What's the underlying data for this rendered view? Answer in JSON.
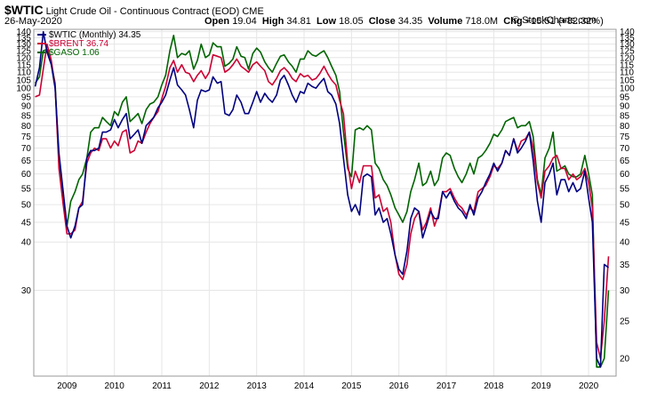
{
  "header": {
    "symbol": "$WTIC",
    "description": "Light Crude Oil - Continuous Contract (EOD)",
    "exchange": "CME",
    "date": "26-May-2020",
    "open_label": "Open",
    "open_value": "19.04",
    "high_label": "High",
    "high_value": "34.81",
    "low_label": "Low",
    "low_value": "18.05",
    "close_label": "Close",
    "close_value": "34.35",
    "volume_label": "Volume",
    "volume_value": "718.0M",
    "chg_label": "Chg",
    "chg_value": "+15.51 (+82.32%)",
    "copyright": "© StockCharts.com"
  },
  "colors": {
    "wtic": "#000080",
    "brent": "#cc0033",
    "gaso": "#006400",
    "grid": "#e6e6e6",
    "frame": "#999999"
  },
  "chart_data": {
    "type": "line",
    "title": "$WTIC Light Crude Oil - Continuous Contract (EOD) CME",
    "y_scale": "log",
    "ylim": [
      18,
      142
    ],
    "xlim": [
      2008.3,
      2020.58
    ],
    "x_ticks": [
      "2009",
      "2010",
      "2011",
      "2012",
      "2013",
      "2014",
      "2015",
      "2016",
      "2017",
      "2018",
      "2019",
      "2020"
    ],
    "y_ticks_left": [
      30,
      40,
      45,
      50,
      55,
      60,
      65,
      70,
      75,
      80,
      85,
      90,
      95,
      100,
      105,
      110,
      115,
      120,
      125,
      130,
      135,
      140
    ],
    "y_ticks_right": [
      20,
      25,
      30,
      35,
      40,
      45,
      50,
      55,
      60,
      65,
      70,
      75,
      80,
      85,
      90,
      95,
      100,
      105,
      110,
      115,
      120,
      125,
      130,
      135,
      140
    ],
    "legend": [
      {
        "label": "$WTIC (Monthly) 34.35"
      },
      {
        "label": "$BRENT 36.74"
      },
      {
        "label": "$GASO 1.06"
      }
    ],
    "series": [
      {
        "name": "$WTIC (Monthly)",
        "x": [
          2008.33,
          2008.42,
          2008.5,
          2008.58,
          2008.67,
          2008.75,
          2008.83,
          2008.92,
          2009.0,
          2009.08,
          2009.17,
          2009.25,
          2009.33,
          2009.42,
          2009.5,
          2009.58,
          2009.67,
          2009.75,
          2009.83,
          2009.92,
          2010.0,
          2010.08,
          2010.17,
          2010.25,
          2010.33,
          2010.42,
          2010.5,
          2010.58,
          2010.67,
          2010.75,
          2010.83,
          2010.92,
          2011.0,
          2011.08,
          2011.17,
          2011.25,
          2011.33,
          2011.42,
          2011.5,
          2011.58,
          2011.67,
          2011.75,
          2011.83,
          2011.92,
          2012.0,
          2012.08,
          2012.17,
          2012.25,
          2012.33,
          2012.42,
          2012.5,
          2012.58,
          2012.67,
          2012.75,
          2012.83,
          2012.92,
          2013.0,
          2013.08,
          2013.17,
          2013.25,
          2013.33,
          2013.42,
          2013.5,
          2013.58,
          2013.67,
          2013.75,
          2013.83,
          2013.92,
          2014.0,
          2014.08,
          2014.17,
          2014.25,
          2014.33,
          2014.42,
          2014.5,
          2014.58,
          2014.67,
          2014.75,
          2014.83,
          2014.92,
          2015.0,
          2015.08,
          2015.17,
          2015.25,
          2015.33,
          2015.42,
          2015.5,
          2015.58,
          2015.67,
          2015.75,
          2015.83,
          2015.92,
          2016.0,
          2016.08,
          2016.17,
          2016.25,
          2016.33,
          2016.42,
          2016.5,
          2016.58,
          2016.67,
          2016.75,
          2016.83,
          2016.92,
          2017.0,
          2017.08,
          2017.17,
          2017.25,
          2017.33,
          2017.42,
          2017.5,
          2017.58,
          2017.67,
          2017.75,
          2017.83,
          2017.92,
          2018.0,
          2018.08,
          2018.17,
          2018.25,
          2018.33,
          2018.42,
          2018.5,
          2018.58,
          2018.67,
          2018.75,
          2018.83,
          2018.92,
          2019.0,
          2019.08,
          2019.17,
          2019.25,
          2019.33,
          2019.42,
          2019.5,
          2019.58,
          2019.67,
          2019.75,
          2019.83,
          2019.92,
          2020.0,
          2020.08,
          2020.17,
          2020.25,
          2020.33,
          2020.42
        ],
        "values": [
          101,
          113,
          140,
          124,
          115,
          100,
          68,
          54,
          44,
          41,
          44,
          49,
          50,
          66,
          69,
          69,
          70,
          77,
          77,
          78,
          83,
          79,
          83,
          86,
          74,
          76,
          78,
          72,
          80,
          82,
          84,
          89,
          92,
          96,
          105,
          113,
          102,
          99,
          96,
          88,
          79,
          93,
          99,
          98,
          99,
          107,
          103,
          104,
          86,
          85,
          88,
          96,
          92,
          86,
          86,
          92,
          98,
          92,
          97,
          94,
          92,
          96,
          105,
          108,
          102,
          96,
          92,
          98,
          97,
          103,
          101,
          100,
          103,
          106,
          98,
          96,
          91,
          81,
          66,
          53,
          48,
          50,
          47,
          59,
          60,
          59,
          47,
          49,
          45,
          46,
          42,
          37,
          34,
          33,
          38,
          46,
          49,
          48,
          41,
          44,
          48,
          46,
          46,
          54,
          52,
          54,
          51,
          49,
          48,
          46,
          50,
          47,
          52,
          54,
          57,
          60,
          64,
          61,
          64,
          69,
          67,
          74,
          68,
          70,
          73,
          77,
          65,
          51,
          45,
          57,
          60,
          64,
          53,
          58,
          58,
          54,
          57,
          54,
          55,
          61,
          52,
          45,
          20,
          19,
          35,
          34.35
        ]
      },
      {
        "name": "$BRENT",
        "x": [
          2008.33,
          2008.42,
          2008.5,
          2008.58,
          2008.67,
          2008.75,
          2008.83,
          2008.92,
          2009.0,
          2009.08,
          2009.17,
          2009.25,
          2009.33,
          2009.42,
          2009.5,
          2009.58,
          2009.67,
          2009.75,
          2009.83,
          2009.92,
          2010.0,
          2010.08,
          2010.17,
          2010.25,
          2010.33,
          2010.42,
          2010.5,
          2010.58,
          2010.67,
          2010.75,
          2010.83,
          2010.92,
          2011.0,
          2011.08,
          2011.17,
          2011.25,
          2011.33,
          2011.42,
          2011.5,
          2011.58,
          2011.67,
          2011.75,
          2011.83,
          2011.92,
          2012.0,
          2012.08,
          2012.17,
          2012.25,
          2012.33,
          2012.42,
          2012.5,
          2012.58,
          2012.67,
          2012.75,
          2012.83,
          2012.92,
          2013.0,
          2013.08,
          2013.17,
          2013.25,
          2013.33,
          2013.42,
          2013.5,
          2013.58,
          2013.67,
          2013.75,
          2013.83,
          2013.92,
          2014.0,
          2014.08,
          2014.17,
          2014.25,
          2014.33,
          2014.42,
          2014.5,
          2014.58,
          2014.67,
          2014.75,
          2014.83,
          2014.92,
          2015.0,
          2015.08,
          2015.17,
          2015.25,
          2015.33,
          2015.42,
          2015.5,
          2015.58,
          2015.67,
          2015.75,
          2015.83,
          2015.92,
          2016.0,
          2016.08,
          2016.17,
          2016.25,
          2016.33,
          2016.42,
          2016.5,
          2016.58,
          2016.67,
          2016.75,
          2016.83,
          2016.92,
          2017.0,
          2017.08,
          2017.17,
          2017.25,
          2017.33,
          2017.42,
          2017.5,
          2017.58,
          2017.67,
          2017.75,
          2017.83,
          2017.92,
          2018.0,
          2018.08,
          2018.17,
          2018.25,
          2018.33,
          2018.42,
          2018.5,
          2018.58,
          2018.67,
          2018.75,
          2018.83,
          2018.92,
          2019.0,
          2019.08,
          2019.17,
          2019.25,
          2019.33,
          2019.42,
          2019.5,
          2019.58,
          2019.67,
          2019.75,
          2019.83,
          2019.92,
          2020.0,
          2020.08,
          2020.17,
          2020.25,
          2020.33,
          2020.42
        ],
        "values": [
          95,
          96,
          112,
          130,
          118,
          101,
          62,
          50,
          42,
          42,
          43,
          49,
          51,
          64,
          68,
          70,
          69,
          74,
          74,
          70,
          73,
          71,
          77,
          78,
          68,
          69,
          73,
          72,
          77,
          81,
          84,
          87,
          94,
          101,
          113,
          118,
          110,
          115,
          110,
          109,
          104,
          108,
          111,
          106,
          110,
          122,
          121,
          120,
          110,
          112,
          115,
          119,
          114,
          112,
          110,
          115,
          117,
          114,
          111,
          104,
          102,
          106,
          111,
          113,
          110,
          106,
          104,
          109,
          107,
          108,
          105,
          106,
          109,
          114,
          109,
          105,
          102,
          93,
          86,
          64,
          55,
          61,
          57,
          63,
          63,
          63,
          52,
          53,
          48,
          49,
          45,
          37,
          33,
          32,
          35,
          42,
          46,
          48,
          43,
          45,
          49,
          44,
          47,
          54,
          54,
          55,
          52,
          50,
          49,
          47,
          49,
          48,
          54,
          55,
          56,
          59,
          63,
          62,
          64,
          69,
          67,
          74,
          69,
          73,
          74,
          77,
          70,
          57,
          52,
          61,
          63,
          66,
          67,
          62,
          62,
          58,
          60,
          58,
          59,
          62,
          57,
          49,
          22,
          20,
          25,
          36.74
        ]
      },
      {
        "name": "$GASO",
        "x": [
          2008.33,
          2008.42,
          2008.5,
          2008.58,
          2008.67,
          2008.75,
          2008.83,
          2008.92,
          2009.0,
          2009.08,
          2009.17,
          2009.25,
          2009.33,
          2009.42,
          2009.5,
          2009.58,
          2009.67,
          2009.75,
          2009.83,
          2009.92,
          2010.0,
          2010.08,
          2010.17,
          2010.25,
          2010.33,
          2010.42,
          2010.5,
          2010.58,
          2010.67,
          2010.75,
          2010.83,
          2010.92,
          2011.0,
          2011.08,
          2011.17,
          2011.25,
          2011.33,
          2011.42,
          2011.5,
          2011.58,
          2011.67,
          2011.75,
          2011.83,
          2011.92,
          2012.0,
          2012.08,
          2012.17,
          2012.25,
          2012.33,
          2012.42,
          2012.5,
          2012.58,
          2012.67,
          2012.75,
          2012.83,
          2012.92,
          2013.0,
          2013.08,
          2013.17,
          2013.25,
          2013.33,
          2013.42,
          2013.5,
          2013.58,
          2013.67,
          2013.75,
          2013.83,
          2013.92,
          2014.0,
          2014.08,
          2014.17,
          2014.25,
          2014.33,
          2014.42,
          2014.5,
          2014.58,
          2014.67,
          2014.75,
          2014.83,
          2014.92,
          2015.0,
          2015.08,
          2015.17,
          2015.25,
          2015.33,
          2015.42,
          2015.5,
          2015.58,
          2015.67,
          2015.75,
          2015.83,
          2015.92,
          2016.0,
          2016.08,
          2016.17,
          2016.25,
          2016.33,
          2016.42,
          2016.5,
          2016.58,
          2016.67,
          2016.75,
          2016.83,
          2016.92,
          2017.0,
          2017.08,
          2017.17,
          2017.25,
          2017.33,
          2017.42,
          2017.5,
          2017.58,
          2017.67,
          2017.75,
          2017.83,
          2017.92,
          2018.0,
          2018.08,
          2018.17,
          2018.25,
          2018.33,
          2018.42,
          2018.5,
          2018.58,
          2018.67,
          2018.75,
          2018.83,
          2018.92,
          2019.0,
          2019.08,
          2019.17,
          2019.25,
          2019.33,
          2019.42,
          2019.5,
          2019.58,
          2019.67,
          2019.75,
          2019.83,
          2019.92,
          2020.0,
          2020.08,
          2020.17,
          2020.25,
          2020.33,
          2020.42
        ],
        "values": [
          103,
          107,
          125,
          126,
          116,
          103,
          64,
          52,
          44,
          51,
          54,
          58,
          60,
          66,
          77,
          79,
          79,
          84,
          82,
          80,
          87,
          85,
          92,
          95,
          82,
          84,
          86,
          81,
          88,
          91,
          92,
          95,
          102,
          108,
          125,
          137,
          120,
          123,
          122,
          125,
          112,
          118,
          130,
          120,
          122,
          131,
          128,
          128,
          114,
          116,
          119,
          128,
          121,
          120,
          112,
          123,
          127,
          124,
          117,
          113,
          110,
          116,
          121,
          122,
          117,
          114,
          110,
          119,
          119,
          125,
          122,
          121,
          123,
          125,
          120,
          114,
          108,
          98,
          77,
          62,
          59,
          78,
          79,
          78,
          80,
          78,
          64,
          62,
          58,
          56,
          53,
          49,
          47,
          45,
          48,
          54,
          58,
          64,
          56,
          57,
          61,
          56,
          58,
          66,
          68,
          67,
          62,
          59,
          57,
          60,
          64,
          60,
          66,
          67,
          69,
          72,
          76,
          75,
          78,
          82,
          83,
          84,
          79,
          80,
          80,
          82,
          75,
          58,
          53,
          66,
          70,
          77,
          61,
          62,
          63,
          60,
          59,
          59,
          60,
          67,
          60,
          53,
          19,
          19,
          20,
          30
        ]
      }
    ]
  }
}
